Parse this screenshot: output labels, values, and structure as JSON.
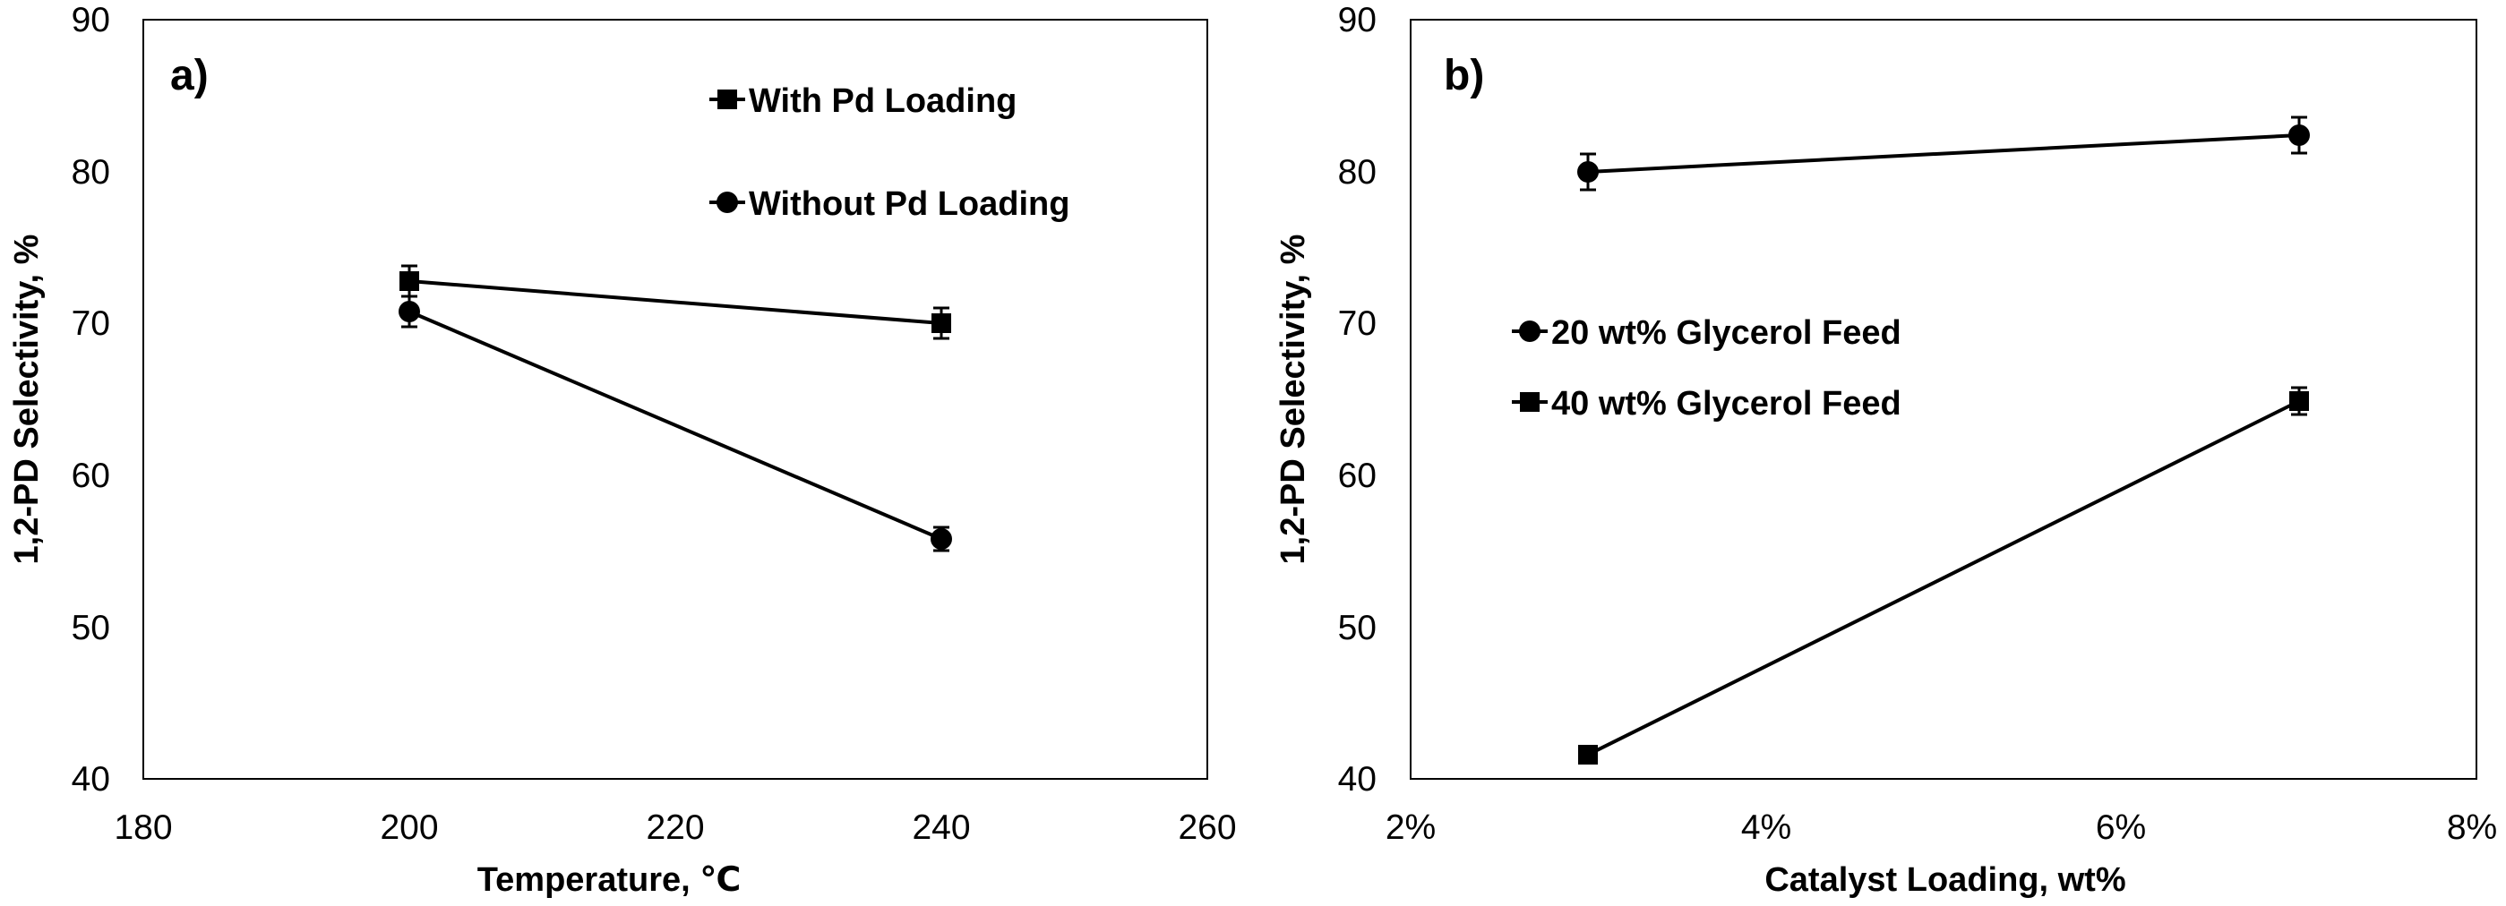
{
  "chart_data": [
    {
      "panel_label": "a)",
      "type": "line",
      "xlabel": "Temperature, ℃",
      "ylabel": "1,2-PD Selectivity, %",
      "xlim": [
        180,
        260
      ],
      "ylim": [
        40,
        90
      ],
      "x_ticks": [
        180,
        200,
        220,
        240,
        260
      ],
      "x_tick_labels": [
        "180",
        "200",
        "220",
        "240",
        "260"
      ],
      "y_ticks": [
        40,
        50,
        60,
        70,
        80,
        90
      ],
      "y_tick_labels": [
        "40",
        "50",
        "60",
        "70",
        "80",
        "90"
      ],
      "grid": false,
      "legend_position": "top-right",
      "series": [
        {
          "name": "With Pd Loading",
          "marker": "square",
          "x": [
            200,
            240
          ],
          "values": [
            72.9,
            70.1
          ],
          "errors": [
            1.0,
            1.0
          ]
        },
        {
          "name": "Without Pd Loading",
          "marker": "circle",
          "x": [
            200,
            240
          ],
          "values": [
            70.9,
            55.9
          ],
          "errors": [
            1.0,
            0.8
          ]
        }
      ]
    },
    {
      "panel_label": "b)",
      "type": "line",
      "xlabel": "Catalyst Loading, wt%",
      "ylabel": "1,2-PD Selectivity, %",
      "xlim": [
        2,
        8
      ],
      "ylim": [
        40,
        90
      ],
      "x_ticks": [
        2,
        4,
        6,
        8
      ],
      "x_tick_labels": [
        "2%",
        "4%",
        "6%",
        "8%"
      ],
      "y_ticks": [
        40,
        50,
        60,
        70,
        80,
        90
      ],
      "y_tick_labels": [
        "40",
        "50",
        "60",
        "70",
        "80",
        "90"
      ],
      "grid": false,
      "legend_position": "center-left",
      "series": [
        {
          "name": "20 wt% Glycerol Feed",
          "marker": "circle",
          "x": [
            3,
            7
          ],
          "values": [
            80.2,
            82.6
          ],
          "errors": [
            1.2,
            1.2
          ]
        },
        {
          "name": "40 wt% Glycerol Feed",
          "marker": "square",
          "x": [
            3,
            7
          ],
          "values": [
            41.8,
            65.1
          ],
          "errors": [
            0,
            0.9
          ]
        }
      ]
    }
  ]
}
